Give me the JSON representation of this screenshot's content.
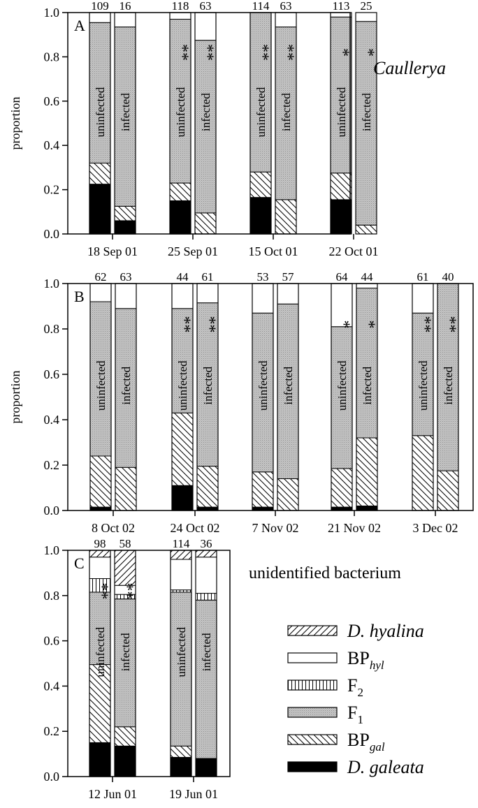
{
  "categories": [
    {
      "key": "D_galeata",
      "label_main": "D. galeata",
      "label_sub": "",
      "italic": true,
      "fill": "black"
    },
    {
      "key": "BP_gal",
      "label_main": "BP",
      "label_sub": "gal",
      "italic": false,
      "fill": "hatchBack"
    },
    {
      "key": "F1",
      "label_main": "F",
      "label_sub": "1",
      "italic": false,
      "fill": "gray"
    },
    {
      "key": "F2",
      "label_main": "F",
      "label_sub": "2",
      "italic": false,
      "fill": "vert"
    },
    {
      "key": "BP_hyl",
      "label_main": "BP",
      "label_sub": "hyl",
      "italic": false,
      "fill": "white"
    },
    {
      "key": "D_hyalina",
      "label_main": "D. hyalina",
      "label_sub": "",
      "italic": true,
      "fill": "hatchFwd"
    }
  ],
  "chart_data": [
    {
      "type": "bar",
      "stacked": true,
      "panel": "A",
      "title": "Caullerya",
      "ylabel": "proportion",
      "ylim": [
        0,
        1
      ],
      "yticks": [
        "0.0",
        "0.2",
        "0.4",
        "0.6",
        "0.8",
        "1.0"
      ],
      "dates": [
        "18 Sep 01",
        "25 Sep 01",
        "15 Oct 01",
        "22 Oct 01"
      ],
      "bars": [
        {
          "date": 0,
          "label": "uninfected",
          "n": "109",
          "stars": "",
          "values": {
            "D_galeata": 0.225,
            "BP_gal": 0.095,
            "F1": 0.635,
            "F2": 0,
            "BP_hyl": 0.045,
            "D_hyalina": 0
          }
        },
        {
          "date": 0,
          "label": "infected",
          "n": "16",
          "stars": "",
          "values": {
            "D_galeata": 0.06,
            "BP_gal": 0.065,
            "F1": 0.81,
            "F2": 0,
            "BP_hyl": 0.065,
            "D_hyalina": 0
          }
        },
        {
          "date": 1,
          "label": "uninfected",
          "n": "118",
          "stars": "**",
          "values": {
            "D_galeata": 0.15,
            "BP_gal": 0.08,
            "F1": 0.74,
            "F2": 0,
            "BP_hyl": 0.03,
            "D_hyalina": 0
          }
        },
        {
          "date": 1,
          "label": "infected",
          "n": "63",
          "stars": "**",
          "values": {
            "D_galeata": 0,
            "BP_gal": 0.095,
            "F1": 0.78,
            "F2": 0,
            "BP_hyl": 0.125,
            "D_hyalina": 0
          }
        },
        {
          "date": 2,
          "label": "uninfected",
          "n": "114",
          "stars": "**",
          "values": {
            "D_galeata": 0.165,
            "BP_gal": 0.115,
            "F1": 0.72,
            "F2": 0,
            "BP_hyl": 0,
            "D_hyalina": 0
          }
        },
        {
          "date": 2,
          "label": "infected",
          "n": "63",
          "stars": "**",
          "values": {
            "D_galeata": 0,
            "BP_gal": 0.155,
            "F1": 0.78,
            "F2": 0,
            "BP_hyl": 0.065,
            "D_hyalina": 0
          }
        },
        {
          "date": 3,
          "label": "uninfected",
          "n": "113",
          "stars": "*",
          "values": {
            "D_galeata": 0.155,
            "BP_gal": 0.12,
            "F1": 0.705,
            "F2": 0,
            "BP_hyl": 0.02,
            "D_hyalina": 0
          }
        },
        {
          "date": 3,
          "label": "infected",
          "n": "25",
          "stars": "*",
          "values": {
            "D_galeata": 0,
            "BP_gal": 0.04,
            "F1": 0.92,
            "F2": 0,
            "BP_hyl": 0.04,
            "D_hyalina": 0
          }
        }
      ]
    },
    {
      "type": "bar",
      "stacked": true,
      "panel": "B",
      "title": "",
      "ylabel": "proportion",
      "ylim": [
        0,
        1
      ],
      "yticks": [
        "0.0",
        "0.2",
        "0.4",
        "0.6",
        "0.8",
        "1.0"
      ],
      "dates": [
        "8 Oct 02",
        "24 Oct 02",
        "7 Nov 02",
        "21 Nov 02",
        "3 Dec 02"
      ],
      "bars": [
        {
          "date": 0,
          "label": "uninfected",
          "n": "62",
          "stars": "",
          "values": {
            "D_galeata": 0.015,
            "BP_gal": 0.225,
            "F1": 0.68,
            "F2": 0,
            "BP_hyl": 0.08,
            "D_hyalina": 0
          }
        },
        {
          "date": 0,
          "label": "infected",
          "n": "63",
          "stars": "",
          "values": {
            "D_galeata": 0,
            "BP_gal": 0.19,
            "F1": 0.7,
            "F2": 0,
            "BP_hyl": 0.11,
            "D_hyalina": 0
          }
        },
        {
          "date": 1,
          "label": "uninfected",
          "n": "44",
          "stars": "**",
          "values": {
            "D_galeata": 0.11,
            "BP_gal": 0.32,
            "F1": 0.46,
            "F2": 0,
            "BP_hyl": 0.11,
            "D_hyalina": 0
          }
        },
        {
          "date": 1,
          "label": "infected",
          "n": "61",
          "stars": "**",
          "values": {
            "D_galeata": 0.015,
            "BP_gal": 0.18,
            "F1": 0.72,
            "F2": 0,
            "BP_hyl": 0.085,
            "D_hyalina": 0
          }
        },
        {
          "date": 2,
          "label": "uninfected",
          "n": "53",
          "stars": "",
          "values": {
            "D_galeata": 0.015,
            "BP_gal": 0.155,
            "F1": 0.7,
            "F2": 0,
            "BP_hyl": 0.13,
            "D_hyalina": 0
          }
        },
        {
          "date": 2,
          "label": "infected",
          "n": "57",
          "stars": "",
          "values": {
            "D_galeata": 0,
            "BP_gal": 0.14,
            "F1": 0.77,
            "F2": 0,
            "BP_hyl": 0.09,
            "D_hyalina": 0
          }
        },
        {
          "date": 3,
          "label": "uninfected",
          "n": "64",
          "stars": "*",
          "values": {
            "D_galeata": 0.015,
            "BP_gal": 0.17,
            "F1": 0.625,
            "F2": 0,
            "BP_hyl": 0.19,
            "D_hyalina": 0
          }
        },
        {
          "date": 3,
          "label": "infected",
          "n": "44",
          "stars": "*",
          "values": {
            "D_galeata": 0.02,
            "BP_gal": 0.3,
            "F1": 0.66,
            "F2": 0,
            "BP_hyl": 0.02,
            "D_hyalina": 0
          }
        },
        {
          "date": 4,
          "label": "uninfected",
          "n": "61",
          "stars": "**",
          "values": {
            "D_galeata": 0,
            "BP_gal": 0.33,
            "F1": 0.54,
            "F2": 0,
            "BP_hyl": 0.13,
            "D_hyalina": 0
          }
        },
        {
          "date": 4,
          "label": "infected",
          "n": "40",
          "stars": "**",
          "values": {
            "D_galeata": 0,
            "BP_gal": 0.175,
            "F1": 0.825,
            "F2": 0,
            "BP_hyl": 0,
            "D_hyalina": 0
          }
        }
      ]
    },
    {
      "type": "bar",
      "stacked": true,
      "panel": "C",
      "title": "unidentified bacterium",
      "ylabel": "",
      "ylim": [
        0,
        1
      ],
      "yticks": [
        "0.0",
        "0.2",
        "0.4",
        "0.6",
        "0.8",
        "1.0"
      ],
      "dates": [
        "12 Jun 01",
        "19 Jun 01"
      ],
      "bars": [
        {
          "date": 0,
          "label": "uninfected",
          "n": "98",
          "stars": "**",
          "values": {
            "D_galeata": 0.15,
            "BP_gal": 0.345,
            "F1": 0.32,
            "F2": 0.06,
            "BP_hyl": 0.095,
            "D_hyalina": 0.03
          }
        },
        {
          "date": 0,
          "label": "infected",
          "n": "58",
          "stars": "**",
          "values": {
            "D_galeata": 0.135,
            "BP_gal": 0.085,
            "F1": 0.565,
            "F2": 0.02,
            "BP_hyl": 0.04,
            "D_hyalina": 0.155
          }
        },
        {
          "date": 1,
          "label": "uninfected",
          "n": "114",
          "stars": "",
          "values": {
            "D_galeata": 0.085,
            "BP_gal": 0.05,
            "F1": 0.68,
            "F2": 0.01,
            "BP_hyl": 0.135,
            "D_hyalina": 0.04
          }
        },
        {
          "date": 1,
          "label": "infected",
          "n": "36",
          "stars": "",
          "values": {
            "D_galeata": 0.08,
            "BP_gal": 0,
            "F1": 0.7,
            "F2": 0.03,
            "BP_hyl": 0.16,
            "D_hyalina": 0.03
          }
        }
      ]
    }
  ]
}
